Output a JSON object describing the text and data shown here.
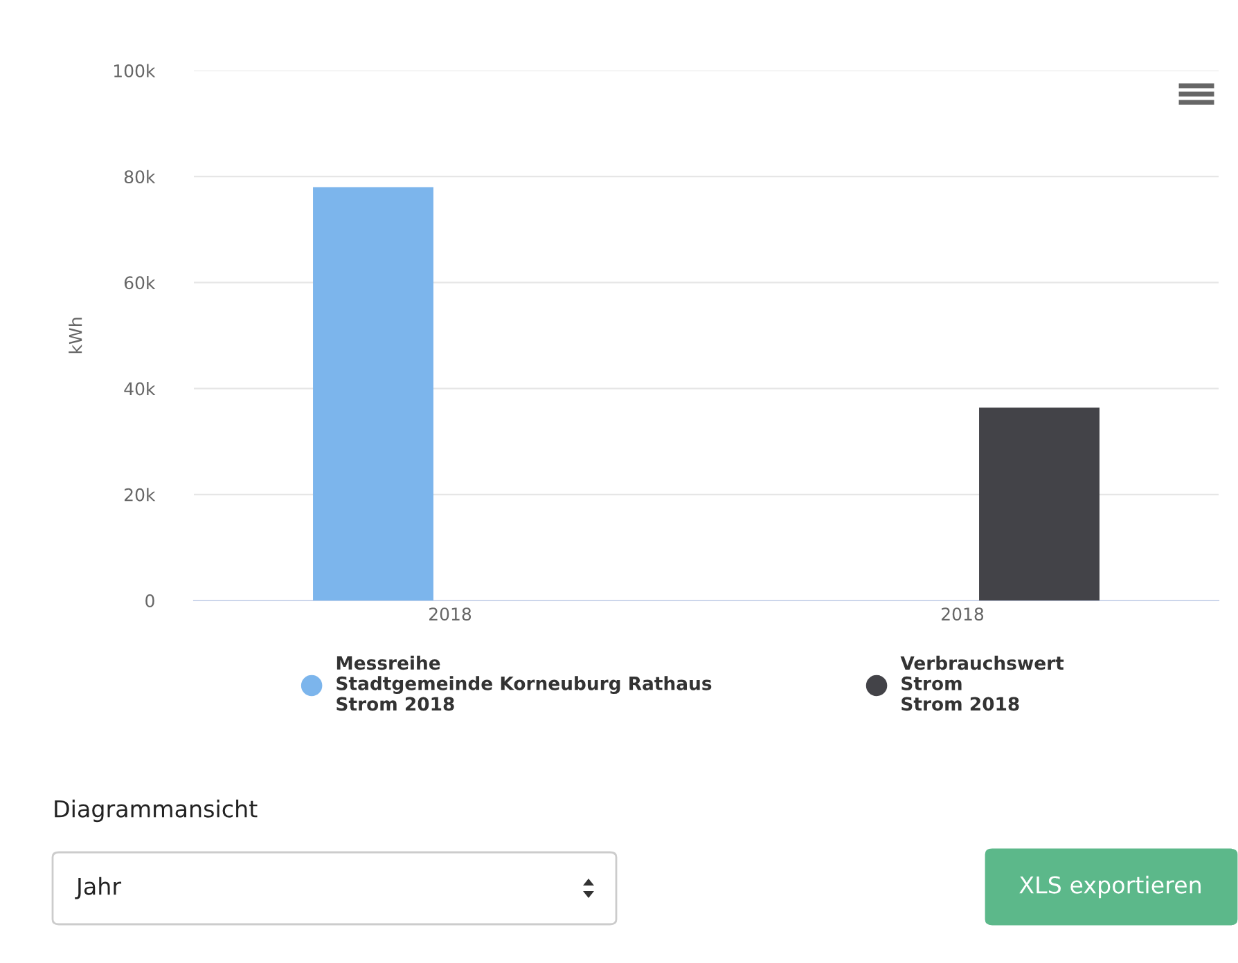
{
  "chart_data": {
    "type": "bar",
    "ylabel": "kWh",
    "categories": [
      "2018",
      "2018"
    ],
    "series": [
      {
        "name": "Messreihe\nStadtgemeinde Korneuburg Rathaus\nStrom 2018",
        "color": "#7cb5ec",
        "values": [
          78000,
          null
        ]
      },
      {
        "name": "Verbrauchswert\nStrom\nStrom 2018",
        "color": "#434348",
        "values": [
          null,
          36400
        ]
      }
    ],
    "ylim": [
      0,
      100000
    ],
    "yticks": [
      {
        "value": 0,
        "label": "0"
      },
      {
        "value": 20000,
        "label": "20k"
      },
      {
        "value": 40000,
        "label": "40k"
      },
      {
        "value": 60000,
        "label": "60k"
      },
      {
        "value": 80000,
        "label": "80k"
      },
      {
        "value": 100000,
        "label": "100k"
      }
    ],
    "grid": "y",
    "legend": "bottom",
    "annotations": [
      "Diagrammansicht",
      "Jahr",
      "XLS exportieren"
    ]
  }
}
